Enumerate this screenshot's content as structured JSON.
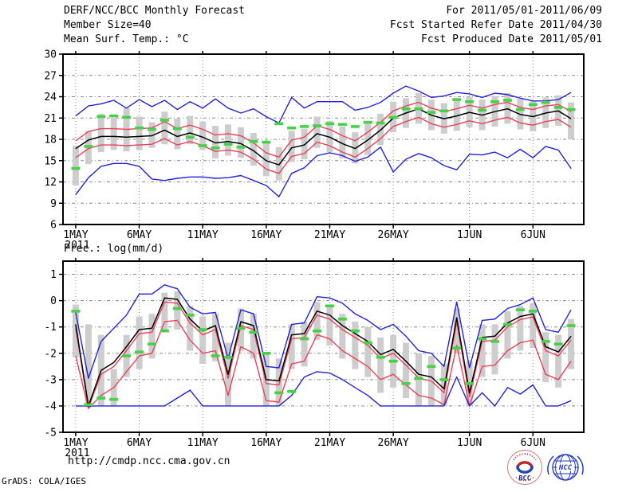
{
  "header": {
    "title": "DERF/NCC/BCC Monthly Forecast",
    "member_size": "Member Size=40",
    "for_range": "For 2011/05/01-2011/06/09",
    "fcst_started": "Fcst Started Refer Date 2011/04/30",
    "fcst_produced": "Fcst Produced Date 2011/05/01"
  },
  "footer": {
    "url": "http://cmdp.ncc.cma.gov.cn",
    "grads_credit": "GrADS: COLA/IGES",
    "logos": {
      "bcc_label": "BCC",
      "ncc_label": "NCC"
    }
  },
  "colors": {
    "envelope_blue": "#2222dd",
    "quartile_red": "#ee4056",
    "mean_black": "#000000",
    "obs_green": "#46d246",
    "spread_bar_gray": "#cdcdcd",
    "grid_gray": "#8a8a8a",
    "frame_black": "#000000",
    "bcc_red": "#c03030",
    "logo_blue": "#2438c8"
  },
  "chart_data": [
    {
      "type": "line",
      "title": "Mean Surf. Temp.: °C",
      "ylim": [
        6,
        30
      ],
      "yticks": [
        30,
        27,
        24,
        21,
        18,
        15,
        12,
        9,
        6
      ],
      "x_axis_day_range": [
        -1,
        40
      ],
      "x_ticks": [
        {
          "day": 0,
          "label": "1MAY",
          "sub": "2011"
        },
        {
          "day": 5,
          "label": "6MAY"
        },
        {
          "day": 10,
          "label": "11MAY"
        },
        {
          "day": 15,
          "label": "16MAY"
        },
        {
          "day": 20,
          "label": "21MAY"
        },
        {
          "day": 25,
          "label": "26MAY"
        },
        {
          "day": 31,
          "label": "1JUN"
        },
        {
          "day": 36,
          "label": "6JUN"
        }
      ],
      "series": {
        "max": [
          21.3,
          22.7,
          23.0,
          23.5,
          22.4,
          23.6,
          22.6,
          23.5,
          22.2,
          23.3,
          22.4,
          23.7,
          22.4,
          21.7,
          22.3,
          21.2,
          20.3,
          23.9,
          22.4,
          23.3,
          23.3,
          23.3,
          22.1,
          22.5,
          23.2,
          24.5,
          25.5,
          24.8,
          23.9,
          24.1,
          24.6,
          24.4,
          23.9,
          24.5,
          24.3,
          23.8,
          23.4,
          23.4,
          23.6,
          24.6
        ],
        "p75": [
          17.8,
          19.1,
          19.5,
          19.5,
          19.4,
          19.5,
          19.6,
          20.5,
          19.5,
          20.0,
          19.4,
          18.6,
          18.8,
          18.5,
          17.5,
          16.1,
          15.5,
          17.9,
          18.3,
          19.9,
          19.4,
          18.5,
          17.8,
          19.0,
          20.4,
          22.0,
          22.7,
          23.2,
          22.4,
          21.9,
          22.3,
          22.8,
          22.4,
          22.9,
          23.2,
          22.5,
          22.2,
          22.7,
          22.9,
          21.9
        ],
        "mean": [
          16.7,
          17.9,
          18.4,
          18.4,
          18.3,
          18.4,
          18.5,
          19.3,
          18.4,
          18.9,
          18.3,
          17.5,
          17.7,
          17.4,
          16.4,
          15.0,
          14.4,
          16.8,
          17.2,
          18.8,
          18.3,
          17.4,
          16.7,
          17.9,
          19.3,
          21.0,
          21.7,
          22.3,
          21.4,
          20.9,
          21.3,
          21.8,
          21.4,
          21.9,
          22.3,
          21.5,
          21.2,
          21.7,
          22.0,
          20.9
        ],
        "p25": [
          15.4,
          16.7,
          17.2,
          17.2,
          17.1,
          17.2,
          17.3,
          18.1,
          17.2,
          17.7,
          17.1,
          16.3,
          16.5,
          16.2,
          15.2,
          13.8,
          13.2,
          15.6,
          16.0,
          17.6,
          17.1,
          16.2,
          15.5,
          16.7,
          18.1,
          19.8,
          20.5,
          21.1,
          20.2,
          19.7,
          20.1,
          20.6,
          20.2,
          20.7,
          21.1,
          20.3,
          20.0,
          20.5,
          20.8,
          19.7
        ],
        "min": [
          10.2,
          12.6,
          14.2,
          14.6,
          14.6,
          14.2,
          12.4,
          12.2,
          12.5,
          12.7,
          12.7,
          12.5,
          12.6,
          12.9,
          12.2,
          11.5,
          9.9,
          13.2,
          14.0,
          15.7,
          16.1,
          15.7,
          14.9,
          15.5,
          16.9,
          13.4,
          15.2,
          16.0,
          15.4,
          14.3,
          13.7,
          15.9,
          15.8,
          16.2,
          15.4,
          16.6,
          15.4,
          17.0,
          16.5,
          13.9
        ]
      },
      "bars": {
        "top": [
          17.1,
          19.2,
          21.6,
          21.0,
          22.4,
          21.2,
          20.4,
          21.9,
          20.9,
          21.3,
          20.5,
          19.9,
          20.1,
          19.7,
          18.9,
          17.6,
          16.9,
          19.2,
          19.5,
          21.2,
          20.6,
          19.8,
          19.0,
          20.2,
          21.6,
          23.3,
          23.8,
          24.5,
          23.6,
          23.1,
          23.5,
          24.0,
          23.6,
          24.1,
          24.5,
          23.7,
          23.4,
          23.9,
          24.2,
          23.2
        ],
        "bottom": [
          11.5,
          14.5,
          16.2,
          16.5,
          16.3,
          16.5,
          16.8,
          17.3,
          16.6,
          17.3,
          16.5,
          15.3,
          15.7,
          15.4,
          14.3,
          12.8,
          12.2,
          14.8,
          15.2,
          16.8,
          16.2,
          15.3,
          14.6,
          15.8,
          17.2,
          19.0,
          19.6,
          20.2,
          19.3,
          18.8,
          19.2,
          19.7,
          19.3,
          19.8,
          20.2,
          19.4,
          19.1,
          19.6,
          19.9,
          18.0
        ]
      },
      "obs_dashes": [
        13.9,
        17.0,
        21.2,
        21.3,
        21.1,
        19.6,
        19.4,
        20.7,
        19.5,
        18.3,
        17.1,
        16.8,
        17.3,
        16.9,
        17.7,
        17.6,
        20.2,
        19.6,
        19.8,
        19.9,
        20.2,
        20.1,
        19.8,
        20.4,
        20.3,
        21.1,
        22.3,
        22.3,
        21.8,
        22.0,
        23.6,
        23.3,
        22.1,
        23.3,
        23.5,
        22.2,
        22.9,
        23.2,
        22.5,
        22.2
      ]
    },
    {
      "type": "line",
      "title": "Prec.: log(mm/d)",
      "ylim": [
        -5,
        1.5
      ],
      "yticks": [
        1,
        0,
        -1,
        -2,
        -3,
        -4,
        -5
      ],
      "x_axis_day_range": [
        -1,
        40
      ],
      "x_ticks": [
        {
          "day": 0,
          "label": "1MAY",
          "sub": "2011"
        },
        {
          "day": 5,
          "label": "6MAY"
        },
        {
          "day": 10,
          "label": "11MAY"
        },
        {
          "day": 15,
          "label": "16MAY"
        },
        {
          "day": 20,
          "label": "21MAY"
        },
        {
          "day": 25,
          "label": "26MAY"
        },
        {
          "day": 31,
          "label": "1JUN"
        },
        {
          "day": 36,
          "label": "6JUN"
        }
      ],
      "series": {
        "max": [
          -0.45,
          -2.95,
          -1.55,
          -1.05,
          -0.55,
          0.25,
          0.25,
          0.6,
          0.45,
          -0.25,
          -0.5,
          -0.45,
          -2.2,
          -0.35,
          -0.5,
          -2.5,
          -2.55,
          -0.9,
          -0.85,
          0.15,
          0.1,
          -0.1,
          -0.5,
          -0.75,
          -1.1,
          -0.9,
          -1.35,
          -1.9,
          -2.0,
          -2.5,
          -0.05,
          -2.55,
          -0.75,
          -0.7,
          -0.3,
          -0.15,
          0.1,
          -1.1,
          -1.2,
          -0.35
        ],
        "p75": [
          -1.05,
          -4.05,
          -2.8,
          -2.5,
          -1.9,
          -1.25,
          -1.2,
          -0.05,
          -0.1,
          -0.85,
          -1.3,
          -1.1,
          -2.95,
          -0.95,
          -1.1,
          -3.15,
          -3.2,
          -1.45,
          -1.4,
          -0.55,
          -0.7,
          -1.1,
          -1.4,
          -1.7,
          -2.2,
          -2.0,
          -2.45,
          -2.95,
          -3.05,
          -3.5,
          -0.8,
          -3.65,
          -1.55,
          -1.5,
          -1.0,
          -0.72,
          -0.62,
          -1.9,
          -2.1,
          -1.5
        ],
        "mean": [
          -0.9,
          -4.0,
          -2.65,
          -2.35,
          -1.75,
          -1.1,
          -1.05,
          0.1,
          0.05,
          -0.7,
          -1.15,
          -0.95,
          -2.8,
          -0.8,
          -0.95,
          -3.0,
          -3.05,
          -1.3,
          -1.25,
          -0.4,
          -0.55,
          -0.95,
          -1.25,
          -1.55,
          -2.05,
          -1.85,
          -2.3,
          -2.8,
          -2.9,
          -3.35,
          -0.65,
          -3.5,
          -1.4,
          -1.35,
          -0.85,
          -0.6,
          -0.5,
          -1.75,
          -1.95,
          -1.35
        ],
        "p25": [
          -2.1,
          -4.1,
          -3.6,
          -3.3,
          -2.7,
          -2.1,
          -2.0,
          -0.8,
          -0.75,
          -1.5,
          -2.0,
          -1.9,
          -3.6,
          -1.75,
          -2.0,
          -3.8,
          -3.85,
          -2.4,
          -2.3,
          -1.3,
          -1.45,
          -1.9,
          -2.2,
          -2.5,
          -3.0,
          -2.8,
          -3.2,
          -3.6,
          -3.7,
          -3.95,
          -1.7,
          -4.0,
          -2.5,
          -2.45,
          -1.9,
          -1.6,
          -1.5,
          -2.8,
          -3.0,
          -2.3
        ],
        "min": [
          -4,
          -4,
          -4,
          -4,
          -4,
          -4,
          -4,
          -4,
          -3.7,
          -3.4,
          -4,
          -4,
          -4,
          -4,
          -4,
          -4,
          -4,
          -3.6,
          -2.9,
          -2.7,
          -2.75,
          -3.0,
          -3.3,
          -3.6,
          -4,
          -4,
          -4,
          -4,
          -4,
          -4,
          -2.9,
          -4,
          -3.5,
          -4,
          -3.3,
          -3.55,
          -3.2,
          -4,
          -4,
          -3.8
        ]
      },
      "bars": {
        "top": [
          -0.15,
          -0.9,
          -1.3,
          -2.6,
          -1.3,
          -0.6,
          -0.5,
          0.3,
          0.35,
          -0.2,
          -0.6,
          -0.5,
          -1.6,
          -0.3,
          -0.5,
          -2.0,
          -2.2,
          -0.9,
          -0.8,
          -0.05,
          -0.2,
          -0.5,
          -0.8,
          -1.0,
          -1.4,
          -1.3,
          -1.6,
          -2.0,
          -2.1,
          -2.4,
          -0.3,
          -2.3,
          -0.9,
          -0.9,
          -0.4,
          -0.2,
          -0.1,
          -1.2,
          -1.3,
          -0.7
        ],
        "bottom": [
          -2.15,
          -4.05,
          -4.0,
          -4.0,
          -2.9,
          -2.6,
          -2.2,
          -1.2,
          -1.1,
          -1.9,
          -2.4,
          -2.3,
          -4.0,
          -1.9,
          -2.2,
          -4.0,
          -4.0,
          -2.6,
          -2.5,
          -1.5,
          -1.7,
          -2.2,
          -2.6,
          -2.9,
          -3.5,
          -3.3,
          -3.7,
          -4.0,
          -4.0,
          -4.0,
          -2.0,
          -4.0,
          -2.9,
          -2.8,
          -2.2,
          -1.9,
          -1.8,
          -3.1,
          -3.3,
          -2.6
        ]
      },
      "obs_dashes": [
        -0.4,
        -3.95,
        -3.7,
        -3.75,
        -2.1,
        -1.95,
        -1.65,
        -1.15,
        -0.3,
        -0.55,
        -1.1,
        -2.1,
        -2.15,
        -1.05,
        -1.2,
        -2.0,
        -3.5,
        -3.45,
        -1.45,
        -1.15,
        -0.2,
        -0.7,
        -1.15,
        -1.6,
        -2.15,
        -2.3,
        -3.15,
        -2.95,
        -2.5,
        -3.0,
        -1.8,
        -3.15,
        -1.45,
        -1.55,
        -0.9,
        -0.35,
        -0.4,
        -1.55,
        -1.65,
        -0.95
      ]
    }
  ]
}
